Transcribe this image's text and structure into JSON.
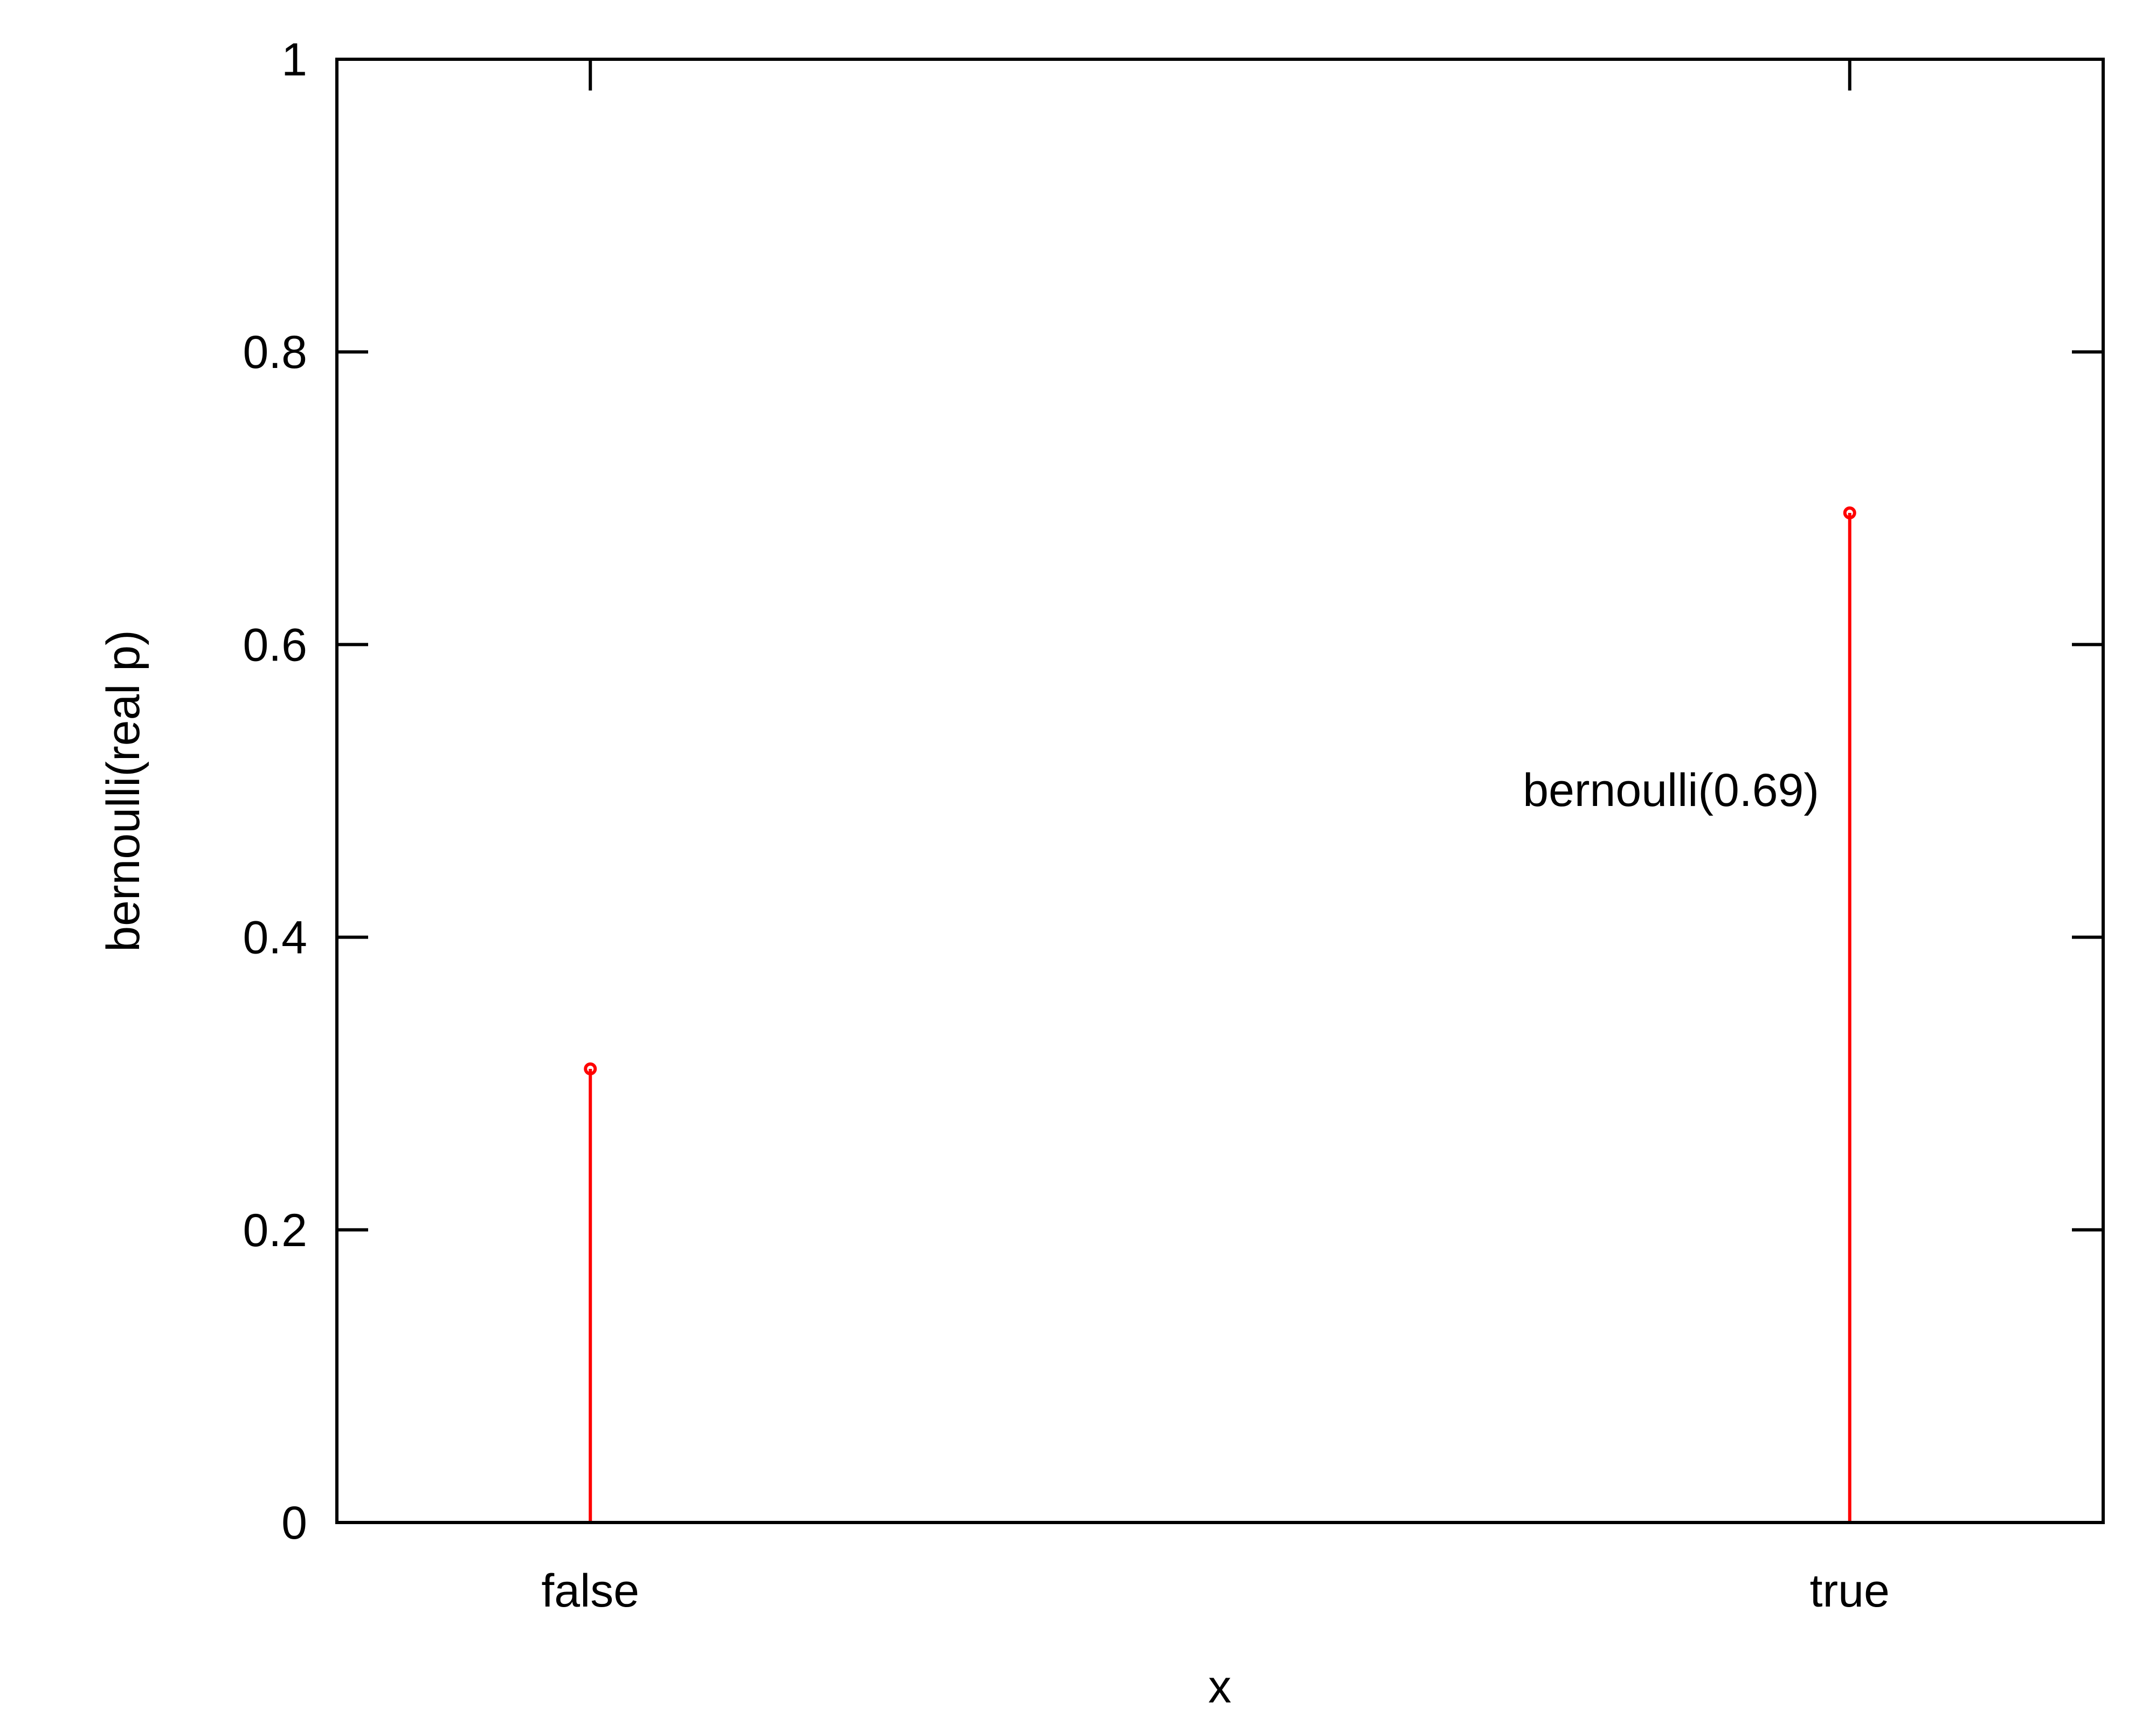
{
  "chart_data": {
    "type": "bar",
    "style": "impulse",
    "categories": [
      "false",
      "true"
    ],
    "values": [
      0.31,
      0.69
    ],
    "title": "",
    "xlabel": "x",
    "ylabel": "bernoulli(real p)",
    "ylim": [
      0,
      1
    ],
    "yticks": [
      "0",
      "0.2",
      "0.4",
      "0.6",
      "0.8",
      "1"
    ],
    "annotation": "bernoulli(0.69)",
    "colors": {
      "series": "#ff0000",
      "axes": "#000000"
    },
    "grid": false
  }
}
